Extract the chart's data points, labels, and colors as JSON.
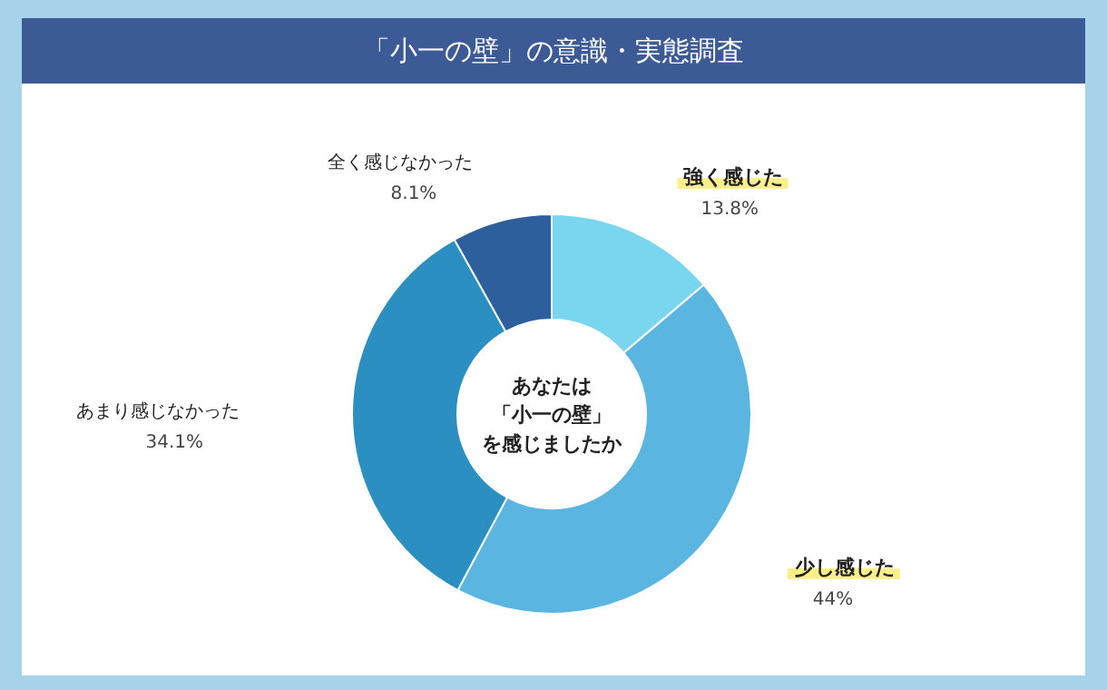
{
  "chart_data": {
    "type": "donut",
    "title": "「小一の壁」の意識・実態調査",
    "categories": [
      "強く感じた",
      "少し感じた",
      "あまり感じなかった",
      "全く感じなかった"
    ],
    "values": [
      13.8,
      44,
      34.1,
      8.1
    ],
    "value_labels": [
      "13.8%",
      "44%",
      "34.1%",
      "8.1%"
    ],
    "colors": [
      "#7ad5ef",
      "#5bb5e1",
      "#2b8fc1",
      "#2c5f9b"
    ],
    "annotations": [
      "あなたは",
      "「小一の壁」",
      "を感じましたか"
    ]
  }
}
